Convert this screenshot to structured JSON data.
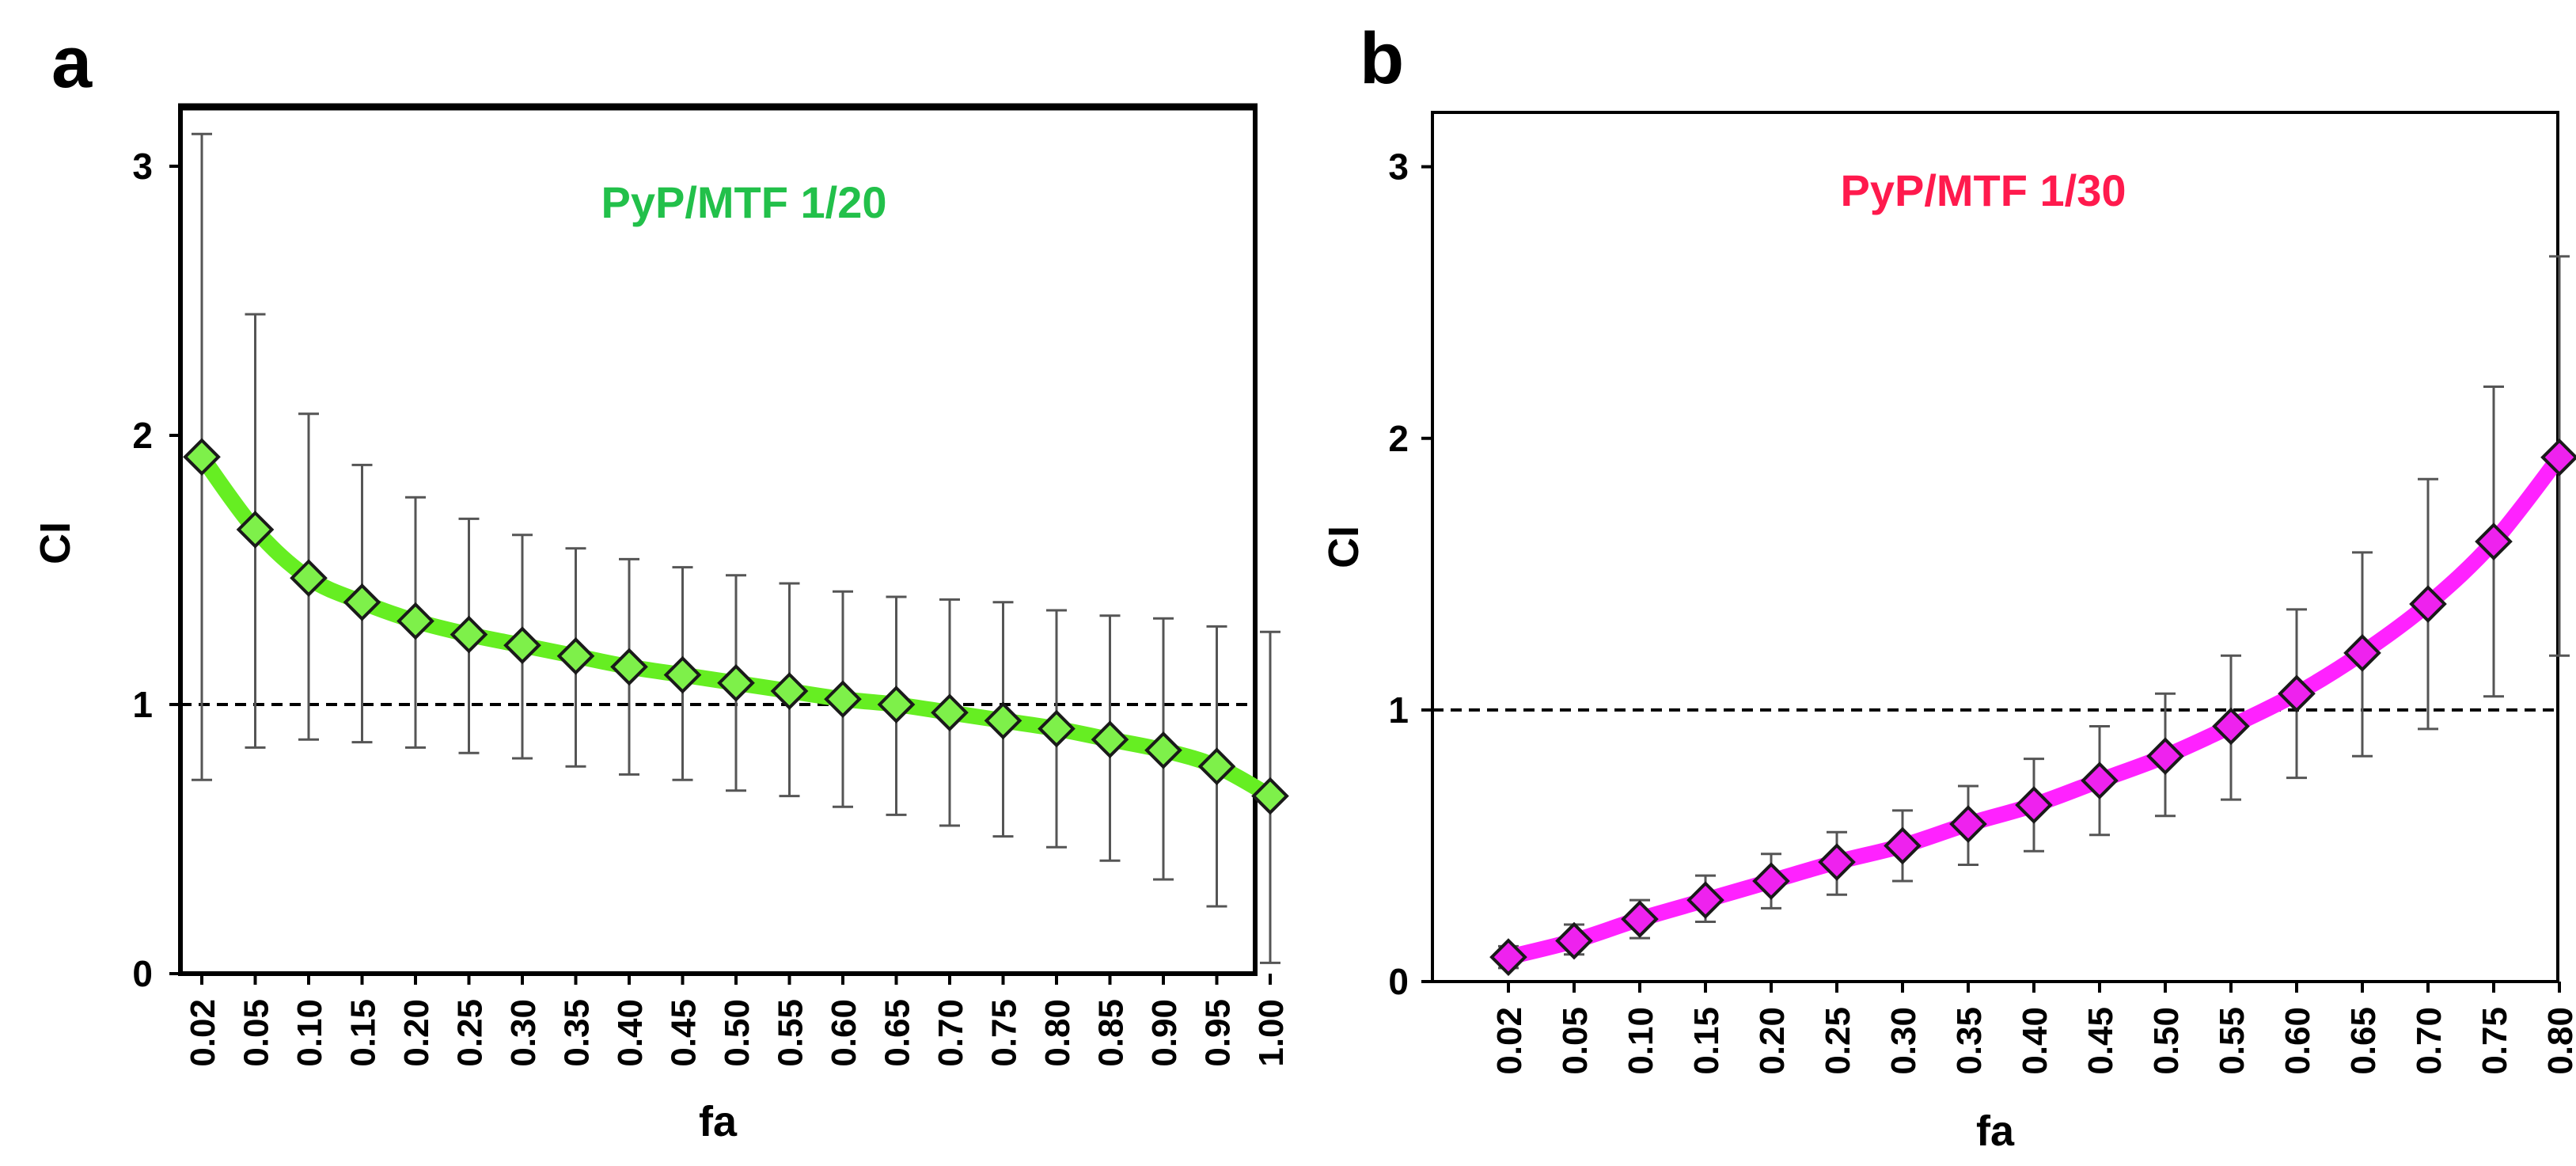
{
  "chart_data": [
    {
      "type": "line",
      "panel_label": "a",
      "title": "PyP/MTF 1/20",
      "xlabel": "fa",
      "ylabel": "CI",
      "ylim": [
        0,
        3.2
      ],
      "yticks": [
        "0",
        "1",
        "2",
        "3"
      ],
      "reference_line": 1,
      "categories": [
        "0.02",
        "0.05",
        "0.10",
        "0.15",
        "0.20",
        "0.25",
        "0.30",
        "0.35",
        "0.40",
        "0.45",
        "0.50",
        "0.55",
        "0.60",
        "0.65",
        "0.70",
        "0.75",
        "0.80",
        "0.85",
        "0.90",
        "0.95",
        "1.00"
      ],
      "values": [
        1.92,
        1.65,
        1.47,
        1.38,
        1.31,
        1.26,
        1.22,
        1.18,
        1.14,
        1.11,
        1.08,
        1.05,
        1.02,
        1.0,
        0.97,
        0.94,
        0.91,
        0.87,
        0.83,
        0.77,
        0.66
      ],
      "error_upper": [
        3.12,
        2.45,
        2.08,
        1.89,
        1.77,
        1.69,
        1.63,
        1.58,
        1.54,
        1.51,
        1.48,
        1.45,
        1.42,
        1.4,
        1.39,
        1.38,
        1.35,
        1.33,
        1.32,
        1.29,
        1.27
      ],
      "error_lower": [
        0.72,
        0.84,
        0.87,
        0.86,
        0.84,
        0.82,
        0.8,
        0.77,
        0.74,
        0.72,
        0.68,
        0.66,
        0.62,
        0.59,
        0.55,
        0.51,
        0.47,
        0.42,
        0.35,
        0.25,
        0.04
      ],
      "line_color": "#66ee22",
      "marker_color": "#7ef04a",
      "title_color": "#22c04a"
    },
    {
      "type": "line",
      "panel_label": "b",
      "title": "PyP/MTF 1/30",
      "xlabel": "fa",
      "ylabel": "CI",
      "ylim": [
        0,
        3.2
      ],
      "yticks": [
        "0",
        "1",
        "2",
        "3"
      ],
      "reference_line": 1,
      "categories": [
        "0.02",
        "0.05",
        "0.10",
        "0.15",
        "0.20",
        "0.25",
        "0.30",
        "0.35",
        "0.40",
        "0.45",
        "0.50",
        "0.55",
        "0.60",
        "0.65",
        "0.70",
        "0.75",
        "0.80"
      ],
      "values": [
        0.09,
        0.15,
        0.23,
        0.3,
        0.37,
        0.44,
        0.5,
        0.58,
        0.65,
        0.74,
        0.83,
        0.94,
        1.06,
        1.21,
        1.39,
        1.62,
        1.93
      ],
      "error_upper": [
        0.13,
        0.21,
        0.3,
        0.39,
        0.47,
        0.55,
        0.63,
        0.72,
        0.82,
        0.94,
        1.06,
        1.2,
        1.37,
        1.58,
        1.85,
        2.19,
        2.67
      ],
      "error_lower": [
        0.05,
        0.1,
        0.16,
        0.22,
        0.27,
        0.32,
        0.37,
        0.43,
        0.48,
        0.54,
        0.61,
        0.67,
        0.75,
        0.83,
        0.93,
        1.05,
        1.2
      ],
      "line_color": "#ff22ff",
      "marker_color": "#ee22ee",
      "title_color": "#ff1a4d"
    }
  ]
}
